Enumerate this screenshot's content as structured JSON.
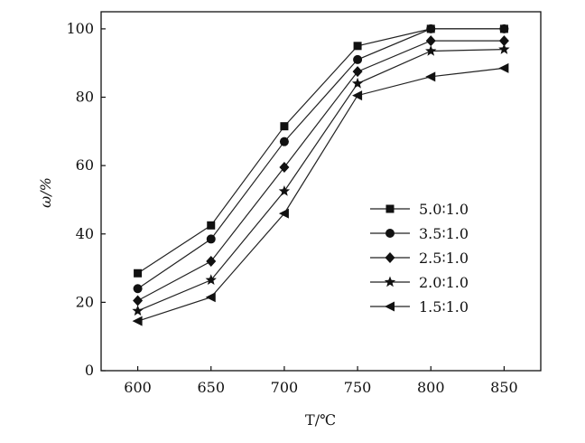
{
  "chart_data": {
    "type": "line",
    "title": "",
    "xlabel": "T/℃",
    "ylabel": "ω/%",
    "x": [
      600,
      650,
      700,
      750,
      800,
      850
    ],
    "xlim": [
      575,
      875
    ],
    "ylim": [
      0,
      105
    ],
    "xticks": [
      "600",
      "650",
      "700",
      "750",
      "800",
      "850"
    ],
    "yticks": [
      "0",
      "20",
      "40",
      "60",
      "80",
      "100"
    ],
    "grid": false,
    "legend_position": "right-middle",
    "series": [
      {
        "name": "5.0∶1.0",
        "marker": "square",
        "values": [
          28.5,
          42.5,
          71.5,
          95,
          100,
          100
        ]
      },
      {
        "name": "3.5∶1.0",
        "marker": "circle",
        "values": [
          24,
          38.5,
          67,
          91,
          100,
          100
        ]
      },
      {
        "name": "2.5∶1.0",
        "marker": "diamond",
        "values": [
          20.5,
          32,
          59.5,
          87.5,
          96.5,
          96.5
        ]
      },
      {
        "name": "2.0∶1.0",
        "marker": "star",
        "values": [
          17.5,
          26.5,
          52.5,
          84,
          93.5,
          94
        ]
      },
      {
        "name": "1.5∶1.0",
        "marker": "triangle-left",
        "values": [
          14.5,
          21.5,
          46,
          80.5,
          86,
          88.5
        ]
      }
    ],
    "colors": {
      "line": "#222222",
      "marker": "#111111",
      "axis": "#111111"
    }
  }
}
